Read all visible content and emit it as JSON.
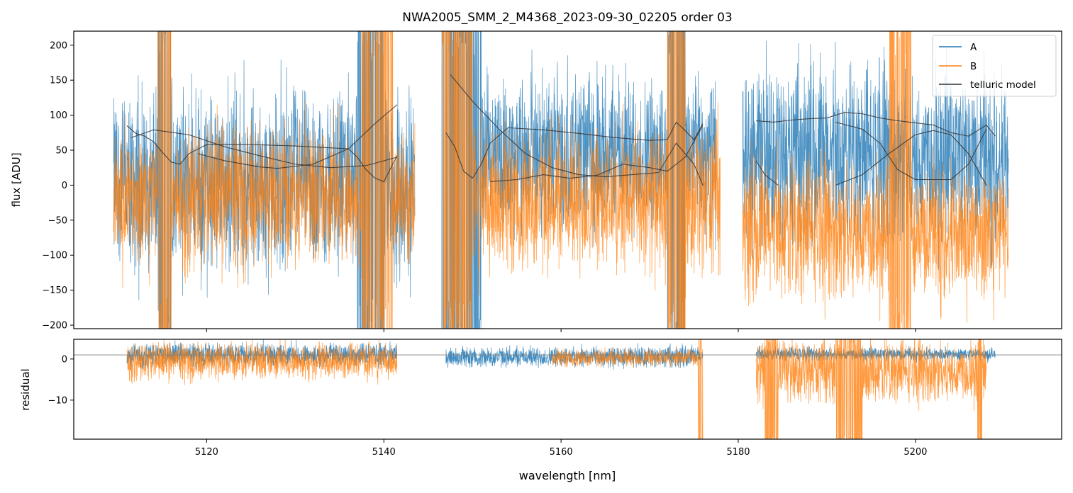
{
  "colors": {
    "A": "#1f77b4",
    "B": "#ff7f0e",
    "model": "#333333",
    "zero": "#808080"
  },
  "chart_data": [
    {
      "type": "line",
      "title": "NWA2005_SMM_2_M4368_2023-09-30_02205  order 03",
      "xlabel": "",
      "ylabel": "flux [ADU]",
      "xlim": [
        5105,
        5216.5
      ],
      "ylim": [
        -205,
        220
      ],
      "yticks": [
        -200,
        -150,
        -100,
        -50,
        0,
        50,
        100,
        150,
        200
      ],
      "ytick_labels": [
        "−200",
        "−150",
        "−100",
        "−50",
        "0",
        "50",
        "100",
        "150",
        "200"
      ],
      "legend": {
        "position": "top-right",
        "entries": [
          "A",
          "B",
          "telluric model"
        ]
      },
      "series": [
        {
          "name": "A",
          "segments": [
            {
              "x0": 5109.5,
              "x1": 5143.5,
              "center": 5,
              "spread": 105,
              "deep_regions": [
                [
                  5114.5,
                  5116
                ],
                [
                  5137,
                  5140
                ]
              ]
            },
            {
              "x0": 5146.5,
              "x1": 5177.5,
              "center": 45,
              "spread": 90,
              "deep_regions": [
                [
                  5146.5,
                  5151
                ],
                [
                  5172,
                  5174
                ]
              ]
            },
            {
              "x0": 5180.5,
              "x1": 5210.5,
              "center": 40,
              "spread": 100,
              "deep_regions": []
            }
          ]
        },
        {
          "name": "B",
          "segments": [
            {
              "x0": 5109.5,
              "x1": 5143.5,
              "center": -15,
              "spread": 80,
              "deep_regions": [
                [
                  5114.5,
                  5116
                ],
                [
                  5137.5,
                  5141
                ]
              ]
            },
            {
              "x0": 5146.5,
              "x1": 5178,
              "center": -20,
              "spread": 85,
              "deep_regions": [
                [
                  5146.5,
                  5150
                ],
                [
                  5172,
                  5174
                ]
              ]
            },
            {
              "x0": 5180.5,
              "x1": 5210.5,
              "center": -65,
              "spread": 80,
              "deep_regions": [
                [
                  5197,
                  5199.5
                ]
              ]
            }
          ]
        },
        {
          "name": "telluric model",
          "segments": [
            {
              "x": [
                5111,
                5112,
                5113,
                5114,
                5115,
                5116,
                5117,
                5118,
                5120,
                5125,
                5130,
                5133,
                5136,
                5137,
                5138,
                5139,
                5140,
                5141,
                5141.5
              ],
              "y": [
                85,
                74,
                70,
                62,
                47,
                33,
                30,
                45,
                58,
                58,
                56,
                54,
                52,
                40,
                22,
                10,
                5,
                30,
                42
              ]
            },
            {
              "x": [
                5111.5,
                5114,
                5118,
                5122,
                5126,
                5130,
                5134,
                5138,
                5141.5
              ],
              "y": [
                68,
                79,
                72,
                55,
                42,
                30,
                25,
                28,
                40
              ]
            },
            {
              "x": [
                5119,
                5122,
                5126,
                5128,
                5132,
                5136,
                5139,
                5141.5
              ],
              "y": [
                45,
                35,
                26,
                24,
                30,
                52,
                88,
                115
              ]
            },
            {
              "x": [
                5147,
                5148,
                5149,
                5150,
                5151,
                5152,
                5154,
                5158,
                5162,
                5166,
                5170,
                5172,
                5173,
                5174,
                5175,
                5176
              ],
              "y": [
                75,
                55,
                20,
                10,
                30,
                60,
                82,
                79,
                74,
                68,
                64,
                65,
                90,
                78,
                65,
                88
              ]
            },
            {
              "x": [
                5147.5,
                5150,
                5153,
                5156,
                5159,
                5162,
                5165,
                5168,
                5171,
                5173,
                5175,
                5176
              ],
              "y": [
                158,
                120,
                80,
                45,
                25,
                15,
                12,
                15,
                18,
                60,
                30,
                0
              ]
            },
            {
              "x": [
                5152,
                5155,
                5158,
                5161,
                5164,
                5167,
                5170,
                5172,
                5174,
                5176
              ],
              "y": [
                5,
                8,
                15,
                10,
                14,
                30,
                25,
                20,
                40,
                85
              ]
            },
            {
              "x": [
                5182,
                5184,
                5186,
                5188,
                5190,
                5192,
                5194,
                5196,
                5198,
                5200,
                5202,
                5204,
                5206,
                5208,
                5209
              ],
              "y": [
                92,
                90,
                93,
                95,
                96,
                104,
                102,
                96,
                92,
                89,
                86,
                75,
                70,
                86,
                70
              ]
            },
            {
              "x": [
                5182,
                5183,
                5184.5
              ],
              "y": [
                35,
                15,
                0
              ]
            },
            {
              "x": [
                5191,
                5194,
                5197,
                5200,
                5202,
                5204,
                5206,
                5208
              ],
              "y": [
                0,
                15,
                45,
                72,
                78,
                72,
                45,
                0
              ]
            },
            {
              "x": [
                5191,
                5194,
                5196,
                5198,
                5200,
                5202,
                5204,
                5206,
                5208
              ],
              "y": [
                90,
                80,
                60,
                22,
                8,
                8,
                8,
                30,
                80
              ]
            }
          ]
        }
      ]
    },
    {
      "type": "line",
      "title": "",
      "xlabel": "wavelength [nm]",
      "ylabel": "residual",
      "xlim": [
        5105,
        5216.5
      ],
      "ylim": [
        -19.5,
        4.8
      ],
      "xticks": [
        5120,
        5140,
        5160,
        5180,
        5200
      ],
      "xtick_labels": [
        "5120",
        "5140",
        "5160",
        "5180",
        "5200"
      ],
      "yticks": [
        -10,
        0
      ],
      "ytick_labels": [
        "−10",
        "0"
      ],
      "reference_line_y": 1,
      "series": [
        {
          "name": "A",
          "segments": [
            {
              "x0": 5111,
              "x1": 5141.5,
              "center": 1,
              "spread": 2.2,
              "deep_regions": []
            },
            {
              "x0": 5147,
              "x1": 5176,
              "center": 0.5,
              "spread": 2.0,
              "deep_regions": []
            },
            {
              "x0": 5182,
              "x1": 5209,
              "center": 1.2,
              "spread": 1.3,
              "deep_regions": []
            }
          ]
        },
        {
          "name": "B",
          "segments": [
            {
              "x0": 5111,
              "x1": 5141.5,
              "center": -0.5,
              "spread": 3.5,
              "deep_regions": []
            },
            {
              "x0": 5159,
              "x1": 5176,
              "center": 0.3,
              "spread": 1.8,
              "deep_regions": [
                [
                  5175.5,
                  5176
                ]
              ]
            },
            {
              "x0": 5182,
              "x1": 5208,
              "center": -3,
              "spread": 6,
              "deep_regions": [
                [
                  5183,
                  5184.5
                ],
                [
                  5191,
                  5194
                ],
                [
                  5207,
                  5207.5
                ]
              ]
            }
          ]
        }
      ]
    }
  ]
}
